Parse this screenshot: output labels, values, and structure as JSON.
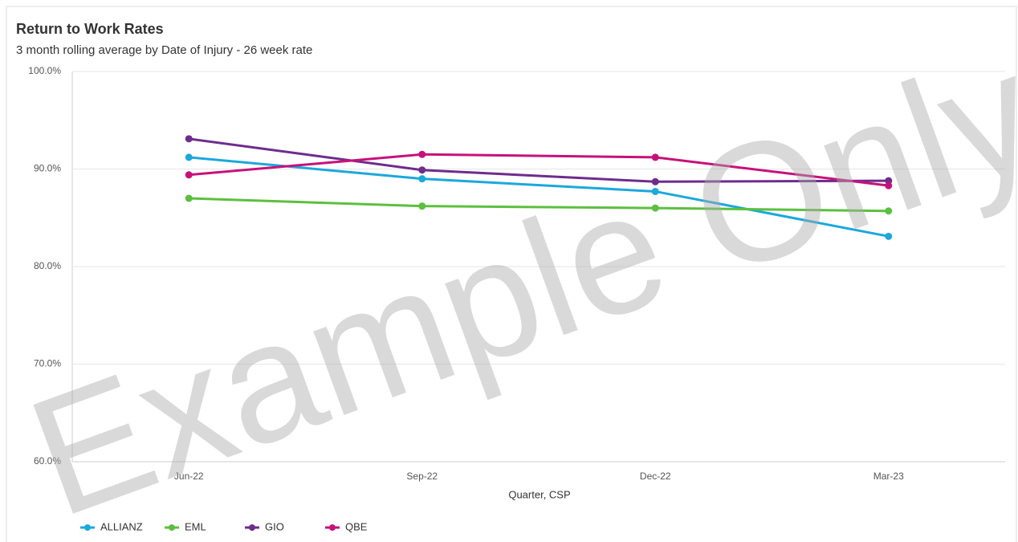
{
  "chart_data": {
    "type": "line",
    "title": "Return to Work Rates",
    "subtitle": "3 month rolling average by Date of Injury - 26 week rate",
    "x_label": "Quarter, CSP",
    "watermark": "Example Only",
    "categories": [
      "Jun-22",
      "Sep-22",
      "Dec-22",
      "Mar-23"
    ],
    "series": [
      {
        "name": "ALLIANZ",
        "color": "#1ba8dc",
        "values": [
          91.2,
          89.0,
          87.7,
          83.1
        ]
      },
      {
        "name": "EML",
        "color": "#5cbf3f",
        "values": [
          87.0,
          86.2,
          86.0,
          85.7
        ]
      },
      {
        "name": "GIO",
        "color": "#6e2c8c",
        "values": [
          93.1,
          89.9,
          88.7,
          88.8
        ]
      },
      {
        "name": "QBE",
        "color": "#c7117a",
        "values": [
          89.4,
          91.5,
          91.2,
          88.3
        ]
      }
    ],
    "ylim": [
      60,
      100
    ],
    "yticks": [
      {
        "value": 60,
        "label": "60.0%"
      },
      {
        "value": 70,
        "label": "70.0%"
      },
      {
        "value": 80,
        "label": "80.0%"
      },
      {
        "value": 90,
        "label": "90.0%"
      },
      {
        "value": 100,
        "label": "100.0%"
      }
    ],
    "grid": true,
    "legend": "bottom-left"
  }
}
